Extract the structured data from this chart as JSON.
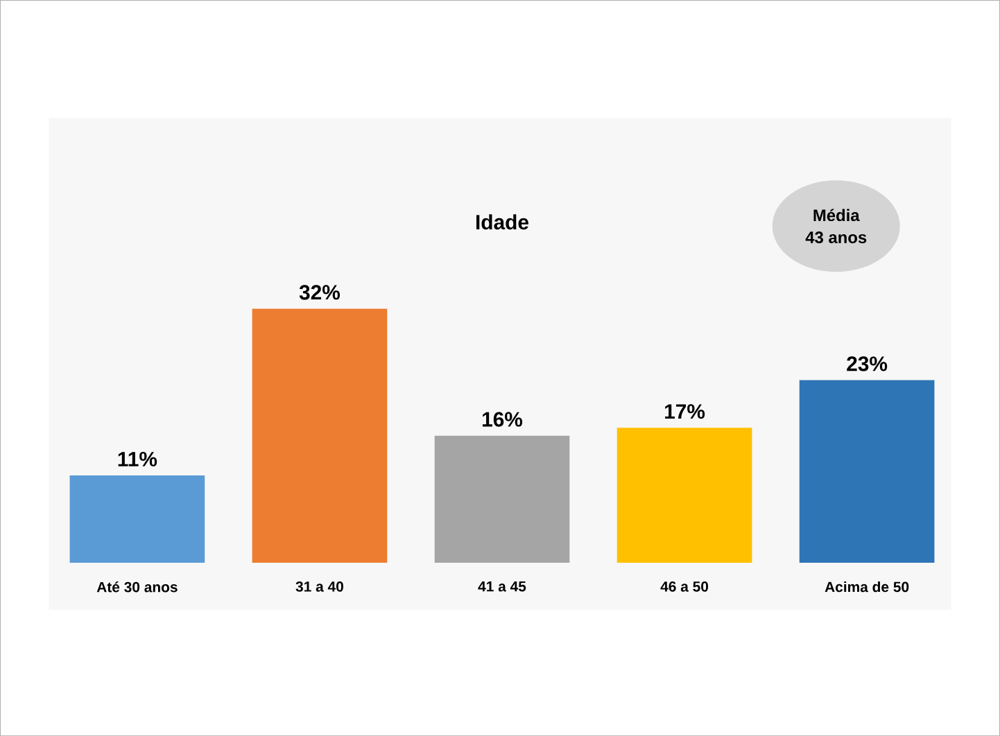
{
  "chart_data": {
    "type": "bar",
    "title": "Idade",
    "categories": [
      "Até 30 anos",
      "31 a 40",
      "41 a 45",
      "46 a 50",
      "Acima de 50"
    ],
    "values": [
      11,
      32,
      16,
      17,
      23
    ],
    "colors": [
      "#5b9bd5",
      "#ed7d31",
      "#a5a5a5",
      "#ffc000",
      "#2e75b6"
    ],
    "value_labels": [
      "11%",
      "32%",
      "16%",
      "17%",
      "23%"
    ],
    "annotations": [
      "Média",
      "43 anos"
    ]
  }
}
